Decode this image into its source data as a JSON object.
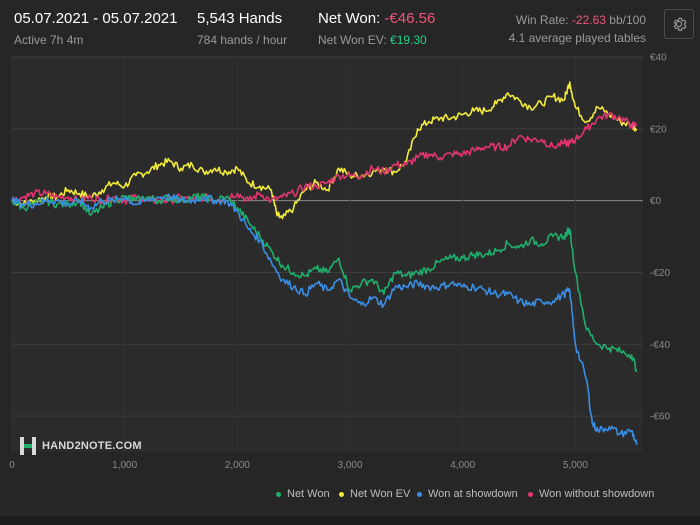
{
  "header": {
    "date_range": "05.07.2021 - 05.07.2021",
    "active": "Active 7h 4m",
    "hands": "5,543 Hands",
    "hands_rate": "784 hands / hour",
    "net_won_label": "Net Won: ",
    "net_won_value": "-€46.56",
    "net_won_ev_label": "Net Won  EV: ",
    "net_won_ev_value": "€19.30",
    "win_rate_label": "Win Rate: ",
    "win_rate_value": "-22.63",
    "win_rate_unit": " bb/100",
    "tables": "4.1 average played tables"
  },
  "settings_icon": "gear-icon",
  "logo": {
    "icon": "hand2note-logo-icon",
    "text": "HAND2NOTE.COM"
  },
  "colors": {
    "background": "#262626",
    "plot_background": "#2b2b2b",
    "net_won": "#1fae6b",
    "net_won_ev": "#f2ea3b",
    "won_at_showdown": "#3a8ee6",
    "won_without_showdown": "#e0356e",
    "negative": "#f0557a",
    "positive": "#27d08a"
  },
  "chart_data": {
    "type": "line",
    "xlim": [
      0,
      5600
    ],
    "ylim": [
      -70,
      40
    ],
    "x_ticks": [
      0,
      1000,
      2000,
      3000,
      4000,
      5000
    ],
    "x_tick_labels": [
      "0",
      "1,000",
      "2,000",
      "3,000",
      "4,000",
      "5,000"
    ],
    "y_ticks": [
      40,
      20,
      0,
      -20,
      -40,
      -60
    ],
    "y_tick_labels": [
      "€40",
      "€20",
      "€0",
      "-€20",
      "-€40",
      "-€60"
    ],
    "grid": true,
    "legend": "bottom-right",
    "series": [
      {
        "name": "Net Won",
        "color": "#1fae6b",
        "points": [
          [
            0,
            0
          ],
          [
            100,
            -2
          ],
          [
            200,
            -1
          ],
          [
            300,
            0
          ],
          [
            400,
            -1
          ],
          [
            500,
            -1
          ],
          [
            600,
            0
          ],
          [
            700,
            -4
          ],
          [
            800,
            -2
          ],
          [
            900,
            0
          ],
          [
            1000,
            1
          ],
          [
            1100,
            0
          ],
          [
            1200,
            1
          ],
          [
            1300,
            0
          ],
          [
            1400,
            1
          ],
          [
            1500,
            0
          ],
          [
            1600,
            1
          ],
          [
            1700,
            1
          ],
          [
            1800,
            0
          ],
          [
            1900,
            1
          ],
          [
            2000,
            -2
          ],
          [
            2100,
            -6
          ],
          [
            2200,
            -10
          ],
          [
            2300,
            -14
          ],
          [
            2400,
            -18
          ],
          [
            2500,
            -20
          ],
          [
            2600,
            -21
          ],
          [
            2700,
            -19
          ],
          [
            2800,
            -20
          ],
          [
            2900,
            -16
          ],
          [
            3000,
            -25
          ],
          [
            3100,
            -23
          ],
          [
            3200,
            -22
          ],
          [
            3300,
            -26
          ],
          [
            3400,
            -20
          ],
          [
            3500,
            -21
          ],
          [
            3600,
            -20
          ],
          [
            3700,
            -19
          ],
          [
            3800,
            -17
          ],
          [
            3900,
            -16
          ],
          [
            4000,
            -16
          ],
          [
            4100,
            -15
          ],
          [
            4200,
            -15
          ],
          [
            4300,
            -14
          ],
          [
            4400,
            -12
          ],
          [
            4500,
            -13
          ],
          [
            4600,
            -11
          ],
          [
            4700,
            -12
          ],
          [
            4800,
            -10
          ],
          [
            4900,
            -10
          ],
          [
            4950,
            -8
          ],
          [
            5000,
            -20
          ],
          [
            5100,
            -36
          ],
          [
            5200,
            -40
          ],
          [
            5300,
            -41
          ],
          [
            5400,
            -42
          ],
          [
            5500,
            -43
          ],
          [
            5543,
            -47
          ]
        ]
      },
      {
        "name": "Net Won  EV",
        "color": "#f2ea3b",
        "points": [
          [
            0,
            0
          ],
          [
            100,
            -1
          ],
          [
            200,
            0
          ],
          [
            300,
            1
          ],
          [
            400,
            1
          ],
          [
            500,
            3
          ],
          [
            600,
            2
          ],
          [
            700,
            1
          ],
          [
            800,
            3
          ],
          [
            900,
            5
          ],
          [
            1000,
            4
          ],
          [
            1100,
            7
          ],
          [
            1200,
            8
          ],
          [
            1300,
            10
          ],
          [
            1400,
            11
          ],
          [
            1500,
            9
          ],
          [
            1600,
            10
          ],
          [
            1700,
            8
          ],
          [
            1800,
            9
          ],
          [
            1900,
            8
          ],
          [
            2000,
            9
          ],
          [
            2100,
            5
          ],
          [
            2200,
            4
          ],
          [
            2300,
            3
          ],
          [
            2350,
            -4
          ],
          [
            2400,
            -5
          ],
          [
            2500,
            -2
          ],
          [
            2600,
            3
          ],
          [
            2700,
            5
          ],
          [
            2800,
            3
          ],
          [
            2900,
            9
          ],
          [
            3000,
            7
          ],
          [
            3100,
            7
          ],
          [
            3200,
            8
          ],
          [
            3300,
            9
          ],
          [
            3400,
            8
          ],
          [
            3500,
            11
          ],
          [
            3600,
            20
          ],
          [
            3700,
            22
          ],
          [
            3800,
            23
          ],
          [
            3900,
            23
          ],
          [
            4000,
            24
          ],
          [
            4100,
            25
          ],
          [
            4200,
            25
          ],
          [
            4300,
            27
          ],
          [
            4400,
            30
          ],
          [
            4500,
            28
          ],
          [
            4600,
            26
          ],
          [
            4700,
            27
          ],
          [
            4800,
            29
          ],
          [
            4900,
            28
          ],
          [
            4950,
            33
          ],
          [
            5000,
            26
          ],
          [
            5100,
            22
          ],
          [
            5200,
            26
          ],
          [
            5300,
            24
          ],
          [
            5400,
            22
          ],
          [
            5500,
            21
          ],
          [
            5543,
            20
          ]
        ]
      },
      {
        "name": "Won at showdown",
        "color": "#3a8ee6",
        "points": [
          [
            0,
            0
          ],
          [
            100,
            -1
          ],
          [
            200,
            -1
          ],
          [
            300,
            0
          ],
          [
            400,
            0
          ],
          [
            500,
            -1
          ],
          [
            600,
            0
          ],
          [
            700,
            -2
          ],
          [
            800,
            0
          ],
          [
            900,
            0
          ],
          [
            1000,
            1
          ],
          [
            1100,
            -1
          ],
          [
            1200,
            0
          ],
          [
            1300,
            1
          ],
          [
            1400,
            1
          ],
          [
            1500,
            0
          ],
          [
            1600,
            0
          ],
          [
            1700,
            1
          ],
          [
            1800,
            0
          ],
          [
            1900,
            0
          ],
          [
            2000,
            -3
          ],
          [
            2100,
            -8
          ],
          [
            2200,
            -11
          ],
          [
            2300,
            -17
          ],
          [
            2400,
            -22
          ],
          [
            2500,
            -24
          ],
          [
            2600,
            -26
          ],
          [
            2700,
            -23
          ],
          [
            2800,
            -25
          ],
          [
            2900,
            -22
          ],
          [
            3000,
            -27
          ],
          [
            3100,
            -29
          ],
          [
            3200,
            -27
          ],
          [
            3300,
            -29
          ],
          [
            3400,
            -24
          ],
          [
            3500,
            -24
          ],
          [
            3600,
            -23
          ],
          [
            3700,
            -24
          ],
          [
            3800,
            -24
          ],
          [
            3900,
            -23
          ],
          [
            4000,
            -24
          ],
          [
            4100,
            -24
          ],
          [
            4200,
            -25
          ],
          [
            4300,
            -26
          ],
          [
            4400,
            -26
          ],
          [
            4500,
            -28
          ],
          [
            4600,
            -29
          ],
          [
            4700,
            -28
          ],
          [
            4800,
            -28
          ],
          [
            4900,
            -26
          ],
          [
            4950,
            -25
          ],
          [
            5000,
            -40
          ],
          [
            5100,
            -50
          ],
          [
            5150,
            -62
          ],
          [
            5200,
            -64
          ],
          [
            5300,
            -63
          ],
          [
            5400,
            -65
          ],
          [
            5500,
            -64
          ],
          [
            5543,
            -68
          ]
        ]
      },
      {
        "name": "Won without showdown",
        "color": "#e0356e",
        "points": [
          [
            0,
            0
          ],
          [
            100,
            1
          ],
          [
            200,
            2
          ],
          [
            300,
            2
          ],
          [
            400,
            1
          ],
          [
            500,
            1
          ],
          [
            600,
            0
          ],
          [
            700,
            1
          ],
          [
            800,
            0
          ],
          [
            900,
            1
          ],
          [
            1000,
            0
          ],
          [
            1100,
            1
          ],
          [
            1200,
            0
          ],
          [
            1300,
            0
          ],
          [
            1400,
            0
          ],
          [
            1500,
            1
          ],
          [
            1600,
            0
          ],
          [
            1700,
            1
          ],
          [
            1800,
            0
          ],
          [
            1900,
            1
          ],
          [
            2000,
            2
          ],
          [
            2100,
            0
          ],
          [
            2200,
            2
          ],
          [
            2300,
            0
          ],
          [
            2400,
            1
          ],
          [
            2500,
            2
          ],
          [
            2600,
            4
          ],
          [
            2700,
            4
          ],
          [
            2800,
            5
          ],
          [
            2900,
            7
          ],
          [
            3000,
            7
          ],
          [
            3100,
            7
          ],
          [
            3200,
            9
          ],
          [
            3300,
            8
          ],
          [
            3400,
            10
          ],
          [
            3500,
            10
          ],
          [
            3600,
            12
          ],
          [
            3700,
            13
          ],
          [
            3800,
            12
          ],
          [
            3900,
            13
          ],
          [
            4000,
            13
          ],
          [
            4100,
            14
          ],
          [
            4200,
            15
          ],
          [
            4300,
            15
          ],
          [
            4400,
            15
          ],
          [
            4500,
            18
          ],
          [
            4600,
            17
          ],
          [
            4700,
            17
          ],
          [
            4800,
            15
          ],
          [
            4900,
            16
          ],
          [
            4950,
            16
          ],
          [
            5000,
            17
          ],
          [
            5100,
            20
          ],
          [
            5200,
            23
          ],
          [
            5300,
            24
          ],
          [
            5400,
            23
          ],
          [
            5500,
            21
          ],
          [
            5543,
            21
          ]
        ]
      }
    ]
  }
}
